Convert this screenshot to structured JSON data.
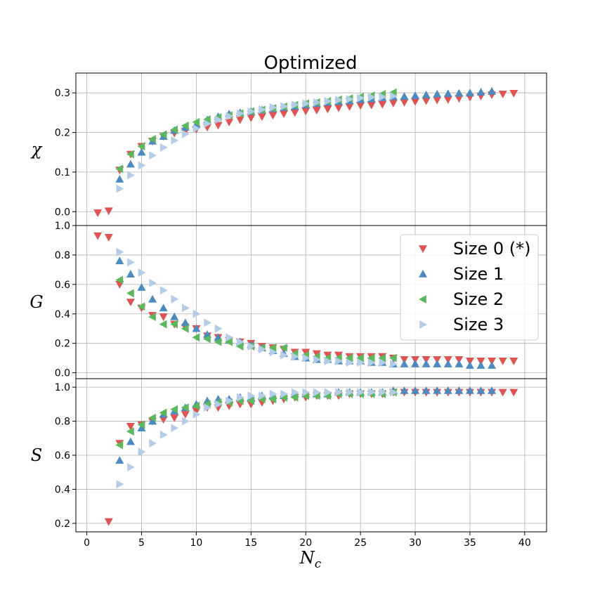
{
  "chart_data": {
    "type": "scatter",
    "title": "Optimized",
    "xlabel": "N",
    "xlabel_sub": "c",
    "xlim": [
      -1,
      42
    ],
    "xticks": [
      0,
      5,
      10,
      15,
      20,
      25,
      30,
      35,
      40
    ],
    "grid": true,
    "legend_location": "right of middle panel",
    "legend": [
      "Size 0 (*)",
      "Size 1",
      "Size 2",
      "Size 3"
    ],
    "colors": {
      "size0": "#e05353",
      "size1": "#4b8bc1",
      "size2": "#5cb85c",
      "size3": "#b3cde8",
      "grid": "#b0b0b0",
      "axis": "#000000"
    },
    "panels": [
      {
        "ylabel": "χ",
        "ylim": [
          -0.035,
          0.35
        ],
        "yticks": [
          0.0,
          0.1,
          0.2,
          0.3
        ],
        "series": [
          {
            "name": "Size 0 (*)",
            "marker": "triangle-down",
            "x": [
              1,
              2,
              3,
              4,
              5,
              6,
              7,
              8,
              9,
              10,
              11,
              12,
              13,
              14,
              15,
              16,
              17,
              18,
              19,
              20,
              21,
              22,
              23,
              24,
              25,
              26,
              27,
              28,
              29,
              30,
              31,
              32,
              33,
              34,
              35,
              36,
              37,
              38,
              39
            ],
            "y": [
              -0.003,
              0.002,
              0.105,
              0.145,
              0.165,
              0.178,
              0.19,
              0.198,
              0.203,
              0.208,
              0.213,
              0.218,
              0.226,
              0.232,
              0.237,
              0.24,
              0.243,
              0.247,
              0.25,
              0.254,
              0.256,
              0.259,
              0.262,
              0.265,
              0.268,
              0.269,
              0.271,
              0.274,
              0.276,
              0.278,
              0.28,
              0.282,
              0.283,
              0.286,
              0.289,
              0.292,
              0.295,
              0.297,
              0.299
            ]
          },
          {
            "name": "Size 1",
            "marker": "triangle-up",
            "x": [
              3,
              4,
              5,
              6,
              7,
              8,
              9,
              10,
              11,
              12,
              13,
              14,
              15,
              16,
              17,
              18,
              19,
              20,
              21,
              22,
              23,
              24,
              25,
              26,
              27,
              28,
              29,
              30,
              31,
              32,
              33,
              34,
              35,
              36,
              37
            ],
            "y": [
              0.082,
              0.12,
              0.15,
              0.178,
              0.19,
              0.205,
              0.213,
              0.22,
              0.232,
              0.24,
              0.247,
              0.25,
              0.253,
              0.257,
              0.26,
              0.263,
              0.266,
              0.27,
              0.273,
              0.276,
              0.278,
              0.28,
              0.283,
              0.285,
              0.288,
              0.29,
              0.291,
              0.293,
              0.295,
              0.297,
              0.298,
              0.299,
              0.3,
              0.302,
              0.304
            ]
          },
          {
            "name": "Size 2",
            "marker": "triangle-left",
            "x": [
              3,
              4,
              5,
              6,
              7,
              8,
              9,
              10,
              11,
              12,
              13,
              14,
              15,
              16,
              17,
              18,
              19,
              20,
              21,
              22,
              23,
              24,
              25,
              26,
              27,
              28
            ],
            "y": [
              0.108,
              0.145,
              0.165,
              0.183,
              0.195,
              0.207,
              0.217,
              0.226,
              0.233,
              0.238,
              0.243,
              0.248,
              0.253,
              0.257,
              0.261,
              0.265,
              0.269,
              0.273,
              0.276,
              0.279,
              0.283,
              0.286,
              0.29,
              0.293,
              0.297,
              0.301
            ]
          },
          {
            "name": "Size 3",
            "marker": "triangle-right",
            "x": [
              3,
              4,
              5,
              6,
              7,
              8,
              9,
              10,
              11,
              12,
              13,
              14,
              15,
              16,
              17,
              18,
              19,
              20,
              21,
              22,
              23,
              24,
              25,
              26,
              27,
              28
            ],
            "y": [
              0.058,
              0.092,
              0.117,
              0.142,
              0.162,
              0.18,
              0.196,
              0.21,
              0.222,
              0.232,
              0.241,
              0.248,
              0.253,
              0.258,
              0.263,
              0.266,
              0.27,
              0.273,
              0.276,
              0.279,
              0.282,
              0.284,
              0.287,
              0.289,
              0.29,
              0.292
            ]
          }
        ]
      },
      {
        "ylabel": "G",
        "ylim": [
          -0.04,
          1.0
        ],
        "yticks": [
          0.0,
          0.2,
          0.4,
          0.6,
          0.8,
          1.0
        ],
        "series": [
          {
            "name": "Size 0 (*)",
            "marker": "triangle-down",
            "x": [
              1,
              2,
              3,
              4,
              5,
              6,
              7,
              8,
              9,
              10,
              11,
              12,
              13,
              14,
              15,
              16,
              17,
              18,
              19,
              20,
              21,
              22,
              23,
              24,
              25,
              26,
              27,
              28,
              29,
              30,
              31,
              32,
              33,
              34,
              35,
              36,
              37,
              38,
              39
            ],
            "y": [
              0.93,
              0.92,
              0.6,
              0.48,
              0.44,
              0.39,
              0.38,
              0.33,
              0.31,
              0.3,
              0.25,
              0.24,
              0.22,
              0.21,
              0.2,
              0.18,
              0.17,
              0.16,
              0.14,
              0.14,
              0.13,
              0.12,
              0.12,
              0.11,
              0.11,
              0.11,
              0.11,
              0.1,
              0.09,
              0.09,
              0.09,
              0.09,
              0.09,
              0.09,
              0.08,
              0.08,
              0.08,
              0.08,
              0.08
            ]
          },
          {
            "name": "Size 1",
            "marker": "triangle-up",
            "x": [
              3,
              4,
              5,
              6,
              7,
              8,
              9,
              10,
              11,
              12,
              13,
              14,
              15,
              16,
              17,
              18,
              19,
              20,
              21,
              22,
              23,
              24,
              25,
              26,
              27,
              28,
              29,
              30,
              31,
              32,
              33,
              34,
              35,
              36,
              37
            ],
            "y": [
              0.76,
              0.67,
              0.58,
              0.5,
              0.44,
              0.38,
              0.34,
              0.3,
              0.26,
              0.24,
              0.22,
              0.21,
              0.19,
              0.17,
              0.15,
              0.13,
              0.11,
              0.1,
              0.09,
              0.09,
              0.08,
              0.08,
              0.08,
              0.07,
              0.07,
              0.06,
              0.06,
              0.06,
              0.06,
              0.06,
              0.06,
              0.06,
              0.05,
              0.05,
              0.05
            ]
          },
          {
            "name": "Size 2",
            "marker": "triangle-left",
            "x": [
              3,
              4,
              5,
              6,
              7,
              8,
              9,
              10,
              11,
              12,
              13,
              14,
              15,
              16,
              17,
              18,
              19,
              20,
              21,
              22,
              23,
              24,
              25,
              26,
              27,
              28
            ],
            "y": [
              0.63,
              0.54,
              0.45,
              0.38,
              0.33,
              0.33,
              0.3,
              0.24,
              0.23,
              0.21,
              0.21,
              0.18,
              0.18,
              0.17,
              0.17,
              0.17,
              0.13,
              0.12,
              0.11,
              0.1,
              0.1,
              0.1,
              0.1,
              0.1,
              0.1,
              0.1
            ]
          },
          {
            "name": "Size 3",
            "marker": "triangle-right",
            "x": [
              3,
              4,
              5,
              6,
              7,
              8,
              9,
              10,
              11,
              12,
              13,
              14,
              15,
              16,
              17,
              18,
              19,
              20,
              21,
              22,
              23,
              24,
              25,
              26,
              27,
              28
            ],
            "y": [
              0.82,
              0.75,
              0.68,
              0.61,
              0.56,
              0.5,
              0.44,
              0.4,
              0.34,
              0.3,
              0.24,
              0.21,
              0.18,
              0.16,
              0.14,
              0.12,
              0.11,
              0.1,
              0.09,
              0.08,
              0.08,
              0.07,
              0.07,
              0.07,
              0.07,
              0.06
            ]
          }
        ]
      },
      {
        "ylabel": "S",
        "ylim": [
          0.15,
          1.05
        ],
        "yticks": [
          0.2,
          0.4,
          0.6,
          0.8,
          1.0
        ],
        "series": [
          {
            "name": "Size 0 (*)",
            "marker": "triangle-down",
            "x": [
              2,
              3,
              4,
              5,
              6,
              7,
              8,
              9,
              10,
              11,
              12,
              13,
              14,
              15,
              16,
              17,
              18,
              19,
              20,
              21,
              22,
              23,
              24,
              25,
              26,
              27,
              28,
              29,
              30,
              31,
              32,
              33,
              34,
              35,
              36,
              37,
              38,
              39
            ],
            "y": [
              0.21,
              0.67,
              0.77,
              0.78,
              0.8,
              0.81,
              0.82,
              0.84,
              0.86,
              0.88,
              0.88,
              0.89,
              0.9,
              0.9,
              0.91,
              0.92,
              0.93,
              0.94,
              0.94,
              0.95,
              0.95,
              0.95,
              0.96,
              0.96,
              0.96,
              0.96,
              0.97,
              0.97,
              0.97,
              0.97,
              0.97,
              0.97,
              0.97,
              0.97,
              0.97,
              0.97,
              0.97,
              0.97
            ]
          },
          {
            "name": "Size 1",
            "marker": "triangle-up",
            "x": [
              3,
              4,
              5,
              6,
              7,
              8,
              9,
              10,
              11,
              12,
              13,
              14,
              15,
              16,
              17,
              18,
              19,
              20,
              21,
              22,
              23,
              24,
              25,
              26,
              27,
              28,
              29,
              30,
              31,
              32,
              33,
              34,
              35,
              36,
              37
            ],
            "y": [
              0.57,
              0.68,
              0.76,
              0.8,
              0.84,
              0.86,
              0.88,
              0.9,
              0.92,
              0.93,
              0.93,
              0.94,
              0.94,
              0.95,
              0.95,
              0.95,
              0.96,
              0.96,
              0.96,
              0.96,
              0.97,
              0.97,
              0.97,
              0.97,
              0.97,
              0.98,
              0.98,
              0.98,
              0.98,
              0.98,
              0.98,
              0.98,
              0.98,
              0.98,
              0.98
            ]
          },
          {
            "name": "Size 2",
            "marker": "triangle-left",
            "x": [
              3,
              4,
              5,
              6,
              7,
              8,
              9,
              10,
              11,
              12,
              13,
              14,
              15,
              16,
              17,
              18,
              19,
              20,
              21,
              22,
              23,
              24,
              25,
              26,
              27,
              28
            ],
            "y": [
              0.66,
              0.74,
              0.78,
              0.82,
              0.85,
              0.87,
              0.88,
              0.89,
              0.9,
              0.91,
              0.91,
              0.92,
              0.92,
              0.93,
              0.93,
              0.94,
              0.94,
              0.95,
              0.95,
              0.95,
              0.96,
              0.96,
              0.96,
              0.96,
              0.96,
              0.97
            ]
          },
          {
            "name": "Size 3",
            "marker": "triangle-right",
            "x": [
              3,
              4,
              5,
              6,
              7,
              8,
              9,
              10,
              11,
              12,
              13,
              14,
              15,
              16,
              17,
              18,
              19,
              20,
              21,
              22,
              23,
              24,
              25,
              26,
              27,
              28
            ],
            "y": [
              0.43,
              0.53,
              0.62,
              0.67,
              0.72,
              0.76,
              0.8,
              0.84,
              0.88,
              0.9,
              0.92,
              0.94,
              0.95,
              0.95,
              0.96,
              0.96,
              0.97,
              0.97,
              0.97,
              0.97,
              0.97,
              0.97,
              0.97,
              0.97,
              0.97,
              0.97
            ]
          }
        ]
      }
    ]
  }
}
